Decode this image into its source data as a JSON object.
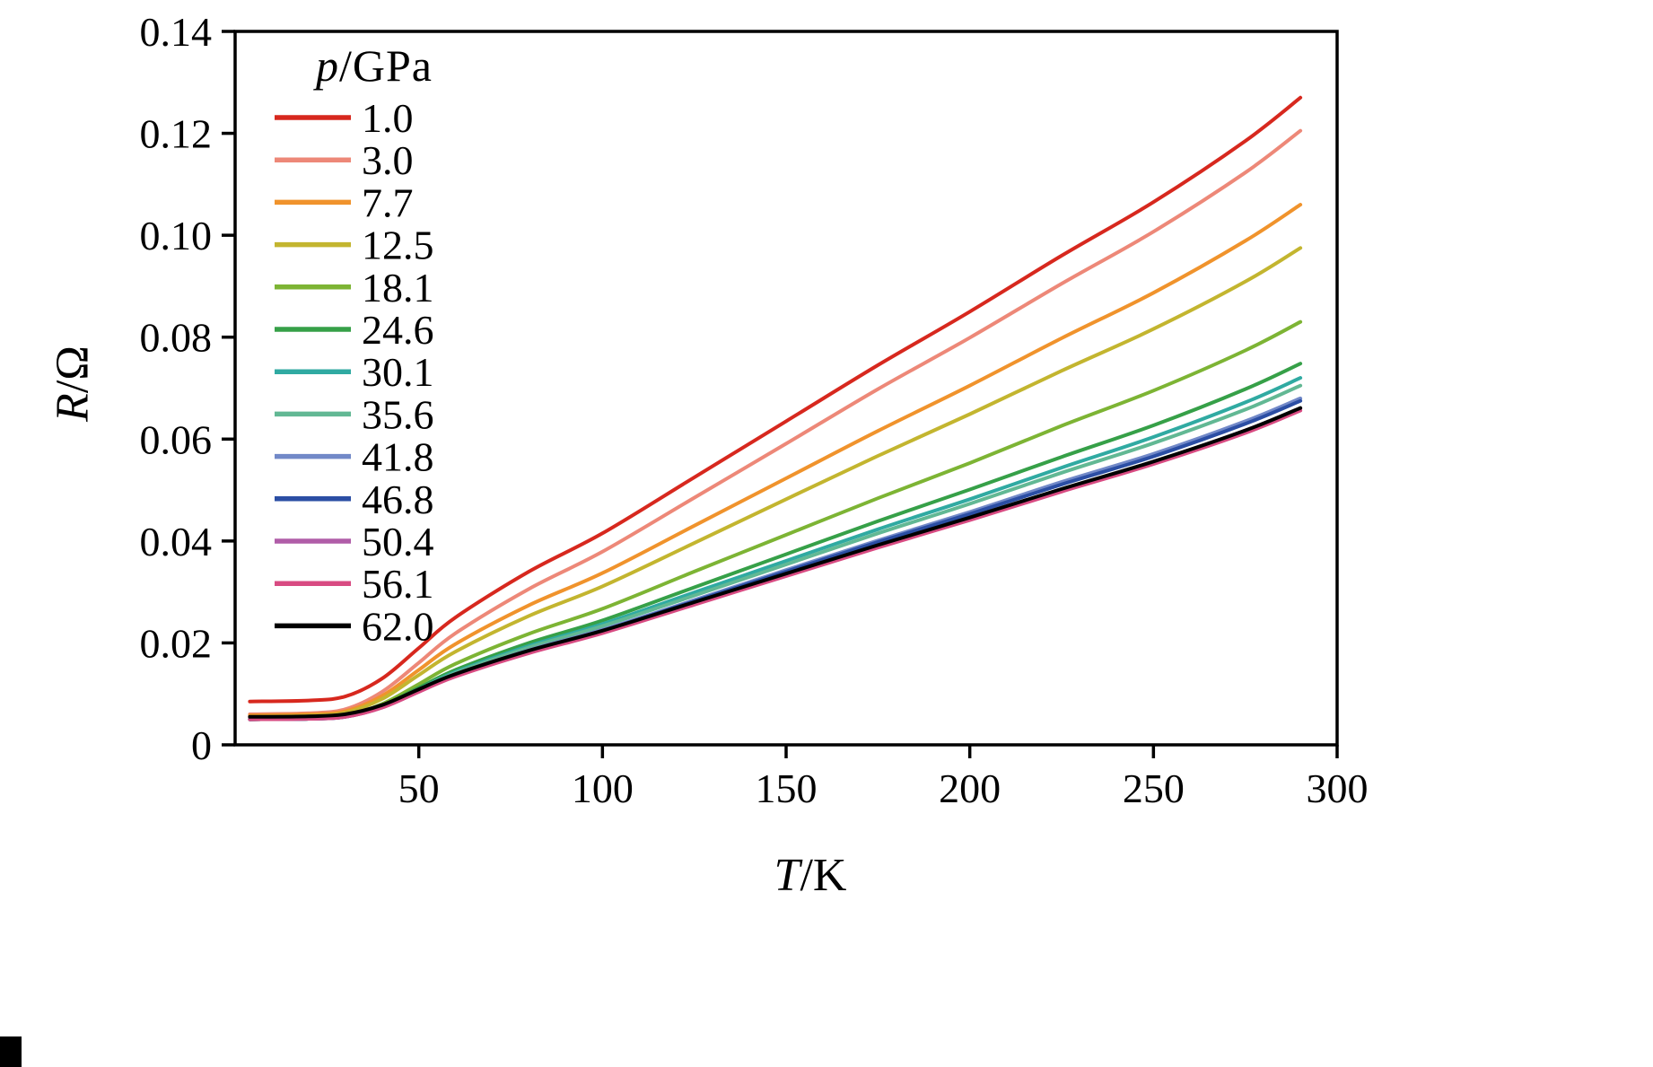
{
  "figure": {
    "legend_title_italic": "p",
    "legend_title_rest": "/GPa",
    "x_label_italic": "T",
    "x_label_rest": "/K",
    "y_label_italic": "R",
    "y_label_rest": "/Ω"
  },
  "chart_data": {
    "type": "line",
    "title": "",
    "xlabel": "T/K",
    "ylabel": "R/Ω",
    "xlim": [
      0,
      300
    ],
    "ylim": [
      0,
      0.14
    ],
    "grid": false,
    "legend_title": "p/GPa",
    "legend_position": "upper left",
    "x_ticks": [
      50,
      100,
      150,
      200,
      250,
      300
    ],
    "y_ticks": [
      0,
      0.02,
      0.04,
      0.06,
      0.08,
      0.1,
      0.12,
      0.14
    ],
    "y_tick_labels": [
      "0",
      "0.02",
      "0.04",
      "0.06",
      "0.08",
      "0.10",
      "0.12",
      "0.14"
    ],
    "x": [
      4,
      20,
      30,
      40,
      50,
      60,
      80,
      100,
      125,
      150,
      175,
      200,
      225,
      250,
      275,
      290
    ],
    "series": [
      {
        "name": "1.0",
        "color": "#d7281e",
        "values": [
          0.0085,
          0.0087,
          0.0095,
          0.013,
          0.019,
          0.025,
          0.034,
          0.0415,
          0.0525,
          0.0635,
          0.0745,
          0.085,
          0.096,
          0.1065,
          0.1185,
          0.127
        ]
      },
      {
        "name": "3.0",
        "color": "#ed8878",
        "values": [
          0.006,
          0.0062,
          0.007,
          0.0104,
          0.0161,
          0.0219,
          0.0306,
          0.0379,
          0.0485,
          0.0591,
          0.0698,
          0.0799,
          0.0905,
          0.1007,
          0.1123,
          0.1205
        ]
      },
      {
        "name": "7.7",
        "color": "#f0932c",
        "values": [
          0.0058,
          0.006,
          0.0066,
          0.0096,
          0.0147,
          0.0198,
          0.0274,
          0.0337,
          0.043,
          0.0523,
          0.0616,
          0.0705,
          0.0798,
          0.0887,
          0.0989,
          0.106
        ]
      },
      {
        "name": "12.5",
        "color": "#c3b52f",
        "values": [
          0.0055,
          0.0057,
          0.0063,
          0.009,
          0.0137,
          0.0183,
          0.0253,
          0.0311,
          0.0396,
          0.0482,
          0.0567,
          0.0649,
          0.0734,
          0.0816,
          0.0909,
          0.0975
        ]
      },
      {
        "name": "18.1",
        "color": "#7db434",
        "values": [
          0.005,
          0.0051,
          0.0057,
          0.008,
          0.0119,
          0.0159,
          0.0218,
          0.0267,
          0.034,
          0.0412,
          0.0484,
          0.0553,
          0.0626,
          0.0695,
          0.0774,
          0.083
        ]
      },
      {
        "name": "24.6",
        "color": "#36a048",
        "values": [
          0.005,
          0.0051,
          0.0056,
          0.0077,
          0.0112,
          0.0147,
          0.02,
          0.0244,
          0.0309,
          0.0374,
          0.0439,
          0.0501,
          0.0565,
          0.0627,
          0.0698,
          0.0748
        ]
      },
      {
        "name": "30.1",
        "color": "#30aaa2",
        "values": [
          0.005,
          0.0051,
          0.0056,
          0.0075,
          0.0109,
          0.0143,
          0.0194,
          0.0237,
          0.0299,
          0.0361,
          0.0423,
          0.0482,
          0.0544,
          0.0604,
          0.0672,
          0.072
        ]
      },
      {
        "name": "35.6",
        "color": "#62b894",
        "values": [
          0.005,
          0.0051,
          0.0056,
          0.0075,
          0.0108,
          0.0141,
          0.0191,
          0.0233,
          0.0293,
          0.0354,
          0.0415,
          0.0473,
          0.0534,
          0.0592,
          0.0658,
          0.0705
        ]
      },
      {
        "name": "41.8",
        "color": "#7289c8",
        "values": [
          0.005,
          0.0051,
          0.0055,
          0.0074,
          0.0106,
          0.0138,
          0.0186,
          0.0226,
          0.0284,
          0.0343,
          0.0401,
          0.0457,
          0.0516,
          0.0571,
          0.0635,
          0.068
        ]
      },
      {
        "name": "46.8",
        "color": "#2b4ea4",
        "values": [
          0.005,
          0.0051,
          0.0055,
          0.0074,
          0.0105,
          0.0137,
          0.0184,
          0.0224,
          0.0282,
          0.034,
          0.0398,
          0.0453,
          0.0511,
          0.0566,
          0.063,
          0.0675
        ]
      },
      {
        "name": "50.4",
        "color": "#b05da8",
        "values": [
          0.005,
          0.0051,
          0.0055,
          0.0073,
          0.0104,
          0.0135,
          0.0181,
          0.022,
          0.0277,
          0.0333,
          0.039,
          0.0444,
          0.0501,
          0.0555,
          0.0617,
          0.066
        ]
      },
      {
        "name": "56.1",
        "color": "#d84b82",
        "values": [
          0.005,
          0.0051,
          0.0055,
          0.0073,
          0.0104,
          0.0134,
          0.018,
          0.0219,
          0.0275,
          0.0331,
          0.0387,
          0.0441,
          0.0497,
          0.0551,
          0.0612,
          0.0656
        ]
      },
      {
        "name": "62.0",
        "color": "#000000",
        "values": [
          0.0055,
          0.0056,
          0.006,
          0.0078,
          0.0109,
          0.0139,
          0.0185,
          0.0224,
          0.028,
          0.0336,
          0.0392,
          0.0446,
          0.0502,
          0.0556,
          0.0617,
          0.0661
        ]
      }
    ]
  }
}
